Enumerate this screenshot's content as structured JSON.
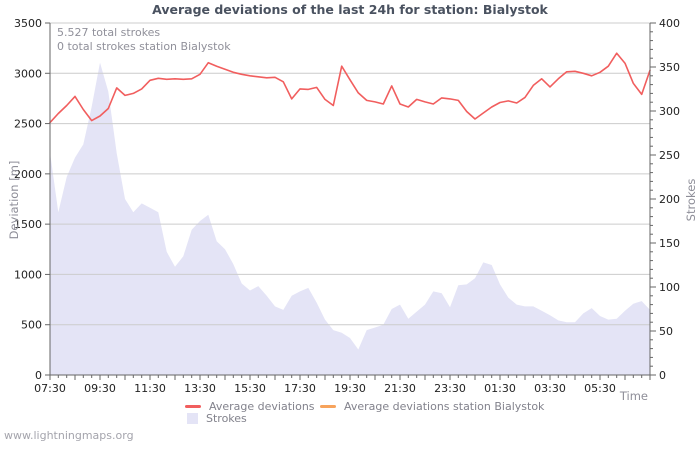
{
  "page": {
    "footer": "www.lightningmaps.org"
  },
  "chart": {
    "title": "Average deviations of the last 24h for station: Bialystok",
    "annotations": {
      "total_strokes": "5.527 total strokes",
      "station_strokes": "0 total strokes station Bialystok"
    },
    "left_axis": {
      "label": "Deviation [m]",
      "ticks": [
        0,
        500,
        1000,
        1500,
        2000,
        2500,
        3000,
        3500
      ]
    },
    "right_axis": {
      "label": "Strokes",
      "major_ticks": [
        0,
        50,
        100,
        150,
        200,
        250,
        300,
        350,
        400
      ],
      "minor_step": 10
    },
    "x_axis": {
      "label": "Time"
    },
    "legend": [
      {
        "label": "Average deviations",
        "color": "#f15e5e",
        "type": "line"
      },
      {
        "label": "Average deviations station Bialystok",
        "color": "#f7a35c",
        "type": "line"
      },
      {
        "label": "Strokes",
        "color": "#e4e4f6",
        "type": "area"
      }
    ],
    "colors": {
      "deviation_line": "#f15e5e",
      "station_line": "#f7a35c",
      "strokes_area": "#e4e4f6",
      "gridline": "#cccccc",
      "axis": "#666666",
      "tick_label": "#222222"
    }
  },
  "chart_data": {
    "type": "line+area",
    "x": [
      "07:30",
      "07:50",
      "08:10",
      "08:30",
      "08:50",
      "09:10",
      "09:30",
      "09:50",
      "10:10",
      "10:30",
      "10:50",
      "11:10",
      "11:30",
      "11:50",
      "12:10",
      "12:30",
      "12:50",
      "13:10",
      "13:30",
      "13:50",
      "14:10",
      "14:30",
      "14:50",
      "15:10",
      "15:30",
      "15:50",
      "16:10",
      "16:30",
      "16:50",
      "17:10",
      "17:30",
      "17:50",
      "18:10",
      "18:30",
      "18:50",
      "19:10",
      "19:30",
      "19:50",
      "20:10",
      "20:30",
      "20:50",
      "21:10",
      "21:30",
      "21:50",
      "22:10",
      "22:30",
      "22:50",
      "23:10",
      "23:30",
      "23:50",
      "00:10",
      "00:30",
      "00:50",
      "01:10",
      "01:30",
      "01:50",
      "02:10",
      "02:30",
      "02:50",
      "03:10",
      "03:30",
      "03:50",
      "04:10",
      "04:30",
      "04:50",
      "05:10",
      "05:30",
      "05:50",
      "06:10",
      "06:30",
      "06:50",
      "07:10",
      "07:30"
    ],
    "x_label_every": 6,
    "left_ylim": [
      0,
      3500
    ],
    "right_ylim": [
      0,
      400
    ],
    "grid": "horizontal-only",
    "legend_position": "bottom",
    "series": [
      {
        "name": "Average deviations",
        "type": "line",
        "axis": "left",
        "color": "#f15e5e",
        "values": [
          2510,
          2600,
          2680,
          2770,
          2640,
          2530,
          2575,
          2650,
          2855,
          2780,
          2800,
          2845,
          2930,
          2950,
          2940,
          2945,
          2940,
          2945,
          2990,
          3105,
          3070,
          3040,
          3010,
          2990,
          2975,
          2965,
          2955,
          2960,
          2915,
          2745,
          2845,
          2840,
          2860,
          2740,
          2680,
          3070,
          2935,
          2805,
          2730,
          2715,
          2695,
          2875,
          2695,
          2665,
          2740,
          2715,
          2695,
          2755,
          2745,
          2730,
          2620,
          2545,
          2605,
          2665,
          2710,
          2725,
          2705,
          2760,
          2880,
          2945,
          2865,
          2945,
          3015,
          3020,
          3000,
          2975,
          3010,
          3070,
          3200,
          3100,
          2900,
          2790,
          3030
        ]
      },
      {
        "name": "Average deviations station Bialystok",
        "type": "line",
        "axis": "left",
        "color": "#f7a35c",
        "values": []
      },
      {
        "name": "Strokes",
        "type": "area",
        "axis": "right",
        "color": "#e4e4f6",
        "values": [
          253,
          185,
          225,
          247,
          262,
          305,
          355,
          322,
          252,
          200,
          185,
          195,
          190,
          185,
          140,
          123,
          135,
          165,
          175,
          182,
          152,
          143,
          126,
          104,
          96,
          101,
          90,
          78,
          74,
          90,
          95,
          99,
          82,
          63,
          51,
          48,
          42,
          29,
          51,
          54,
          57,
          75,
          80,
          64,
          72,
          80,
          95,
          93,
          77,
          102,
          103,
          110,
          128,
          125,
          103,
          88,
          80,
          78,
          78,
          73,
          68,
          62,
          60,
          60,
          70,
          76,
          67,
          63,
          64,
          73,
          81,
          84,
          74
        ]
      }
    ]
  }
}
